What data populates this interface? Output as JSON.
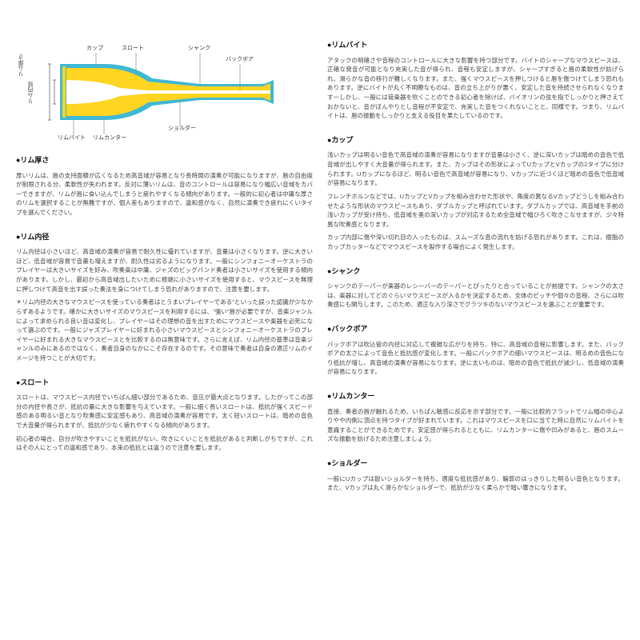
{
  "diagram": {
    "colors": {
      "outline": "#3fb8d4",
      "cup_fill": "#ffd521",
      "bore_fill": "#ffffff",
      "background": "#ffffff",
      "label_line": "#888888",
      "text": "#333333"
    },
    "labels": {
      "rim_thickness": "リム厚さ",
      "rim_inner": "リム内径",
      "throat": "スロート",
      "rim_bite": "リムバイト",
      "rim_contour": "リムカンター",
      "cup": "カップ",
      "shank": "シャンク",
      "backbore": "バックボア",
      "shoulder": "ショルダー"
    },
    "geometry_notes": "cross-section of brass mouthpiece: cyan outer outline, yellow solid body, white inner bore; leader lines from labels to parts"
  },
  "left_sections": [
    {
      "title": "●リム厚さ",
      "paragraphs": [
        "厚いリムは、唇の支持面積が広くなるため高音域が容易となり長時間の演奏が可能になりますが、唇の自由度が制限される分、柔軟性が失われます。反対に薄いリムは、音のコントロールは容易になり幅広い音域をカバーできますが、リムが唇に食い込んでしまうと疲れやすくなる傾向があります。一般的に初心者は中庸な厚さのリムを選択することが無難ですが、個人差もありますので、違和感がなく、自然に演奏でき疲れにくいタイプを選んでください。"
      ]
    },
    {
      "title": "●リム内径",
      "paragraphs": [
        "リム内径は小さいほど、高音域の演奏が容易で耐久性に優れていますが、音量は小さくなります。逆に大きいほど、低音域が容易で音量も増えますが、耐久性は劣るようになります。一般にシンフォニーオーケストラのプレイヤーは大きいサイズを好み、吹奏楽は中庸、ジャズのビッグバンド奏者は小さいサイズを使用する傾向があります。しかし、最初から高音域出したいために極端に小さいサイズを使用すると、マウスピースを無理に押しつけて高音を出す誤った奏法を身につけてしまう恐れがありますので、注意を要します。",
        "＊リム内径の大きなマウスピースを使っている奏者はとうまいプレイヤーである\"といった誤った認識が少なからずあるようです。確かに大きいサイズのマウスピースを利用するには、\"強い\"唇が必要ですが、音楽ジャンルによって求められる良い音は変化し、プレイヤーはその理想の音を出すためにマウスピースや楽器を必死になって選ぶのです。一般にジャズプレイヤーに好まれる小さいマウスピースとシンフォニーオーケストラのプレイヤーに好まれる大きなマウスピースとを比較するのは無意味です。さらに言えば、リム内径の基準は音楽ジャンルのみにあるのではなく、奏者自身のなかにこそ存在するのです。その意味で奏者は自身の適正リムのイメージを持つことが大切です。"
      ]
    },
    {
      "title": "●スロート",
      "paragraphs": [
        "スロートは、マウスピース内径でいちばん細い部分であるため、音圧が最大点となります。したがってこの部分の内径や長さが、抵抗の量に大きな影響を与えています。一般に細く長いスロートは、抵抗が強くスピード感のある明るい音となり吹奏感に安定感もあり、高音域の演奏が容易です。太く短いスロートは、暗めの音色で大音量が得られますが、抵抗が少なく疲れやすくなる傾向があります。",
        "初心者の場合、自分が吹きやすいことを抵抗がない、吹きにくいことを抵抗があると判断しがちですが、これはその人にとっての違和感であり、本来の抵抗とは違うので注意を要します。"
      ]
    }
  ],
  "right_sections": [
    {
      "title": "●リムバイト",
      "paragraphs": [
        "アタックの明確さや音程のコントロールに大きな影響を持つ部分です。バイトのシャープなマウスピースは、正確な発音が可能となり充実した音が得られ、音程も安定しますが、シャープすぎると唇の柔軟性が妨げられ、滑らかな音の移行が難しくなります。また、強くマウスピースを押しつけると唇を傷つけてしまう恐れもあります。逆にバイトが丸く不明瞭なものは、音の立ち上がりが悪く、安定した音を持続させられなくなりますーしかし、一般には管楽器を吹くことのできる初心者を除けば、バイオリンの弦を指でしっかりと押さえておかないと、音がぼんやりとし音程が不安定で、充実した音をつくれないことと、同様です。つまり、リムバイトは、唇の振動をしっかりと支える役目を果たしているのです。"
      ]
    },
    {
      "title": "●カップ",
      "paragraphs": [
        "浅いカップは明るい音色で高音域の演奏が容易になりますが音量は小さく、逆に深いカップは暗めの音色で低音域が出しやすく大音量が得られます。また、カップはその形状によってUカップとVカップの2タイプに分けられます。Uカップになるほど、明るい音色で高音域が容易になり、Vカップに近づくほど暗めの音色で低音域が容易になります。",
        "フレンチホルンなどでは、UカップとVカップを組み合わせた形状や、角度の異なるVカップどうしを組み合わせたような形状のマウスピースもあり、ダブルカップと呼ばれています。ダブルカップでは、高音域を手前の浅いカップが受け持ち、低音域を奥の深いカップが対応するため全音域で幅ひろく吹きこなせますが、少々特異な吹奏感となります。",
        "カップ内部に傷や深い切れ目の入ったものは、スムーズな息の流れを妨げる恐れがあります。これは、樹脂のカップカッターなどでマウスピースを製作する場合によく発生します。"
      ]
    },
    {
      "title": "●シャンク",
      "paragraphs": [
        "シャンクのテーパーが楽器のレシーバーのテーパーとぴったりと合っていることが前提です。シャンクの太さは、楽器に対してどのぐらいマウスピースが入るかを決定するため、全体のピッチや個々の音程、さらには吹奏感にも関与します。このため、適正な入り深さでグラツキのないマウスピースを選ぶことが重要です。"
      ]
    },
    {
      "title": "●バックボア",
      "paragraphs": [
        "バックボアは吹込管の内径に対応して複雑な広がりを持ち、特に、高音域の音程に影響します。また、バックボアの太さによって音色と抵抗感が変化します。一般にバックボアの細いマウスピースは、明るめの音色になり抵抗が増し、高音域の演奏が容易になります。逆に太いものは、暗めの音色で抵抗が減少し、低音域の演奏が容易になります。"
      ]
    },
    {
      "title": "●リムカンター",
      "paragraphs": [
        "直接、奏者の唇が触れるため、いちばん敏感に反応を示す部分です。一般に比較的フラットでリム幅の中心よりやや内側に頂点を持つタイプが好まれています。これはマウスピースを口に当てた時に自然にリムバイトを意識することができるためです。安定感が得られるとともに、リムカンターに傷や凹みがあると、唇のスムーズな振動を妨げるため注意しましょう。"
      ]
    },
    {
      "title": "●ショルダー",
      "paragraphs": [
        "一般にUカップは鋭いショルダーを持ち、適度な抵抗感があり、輪郭のはっきりした明るい音色となります。また、Vカップは丸く滑らかなショルダーで、抵抗が少なく柔らかで暗い響きになります。"
      ]
    }
  ]
}
